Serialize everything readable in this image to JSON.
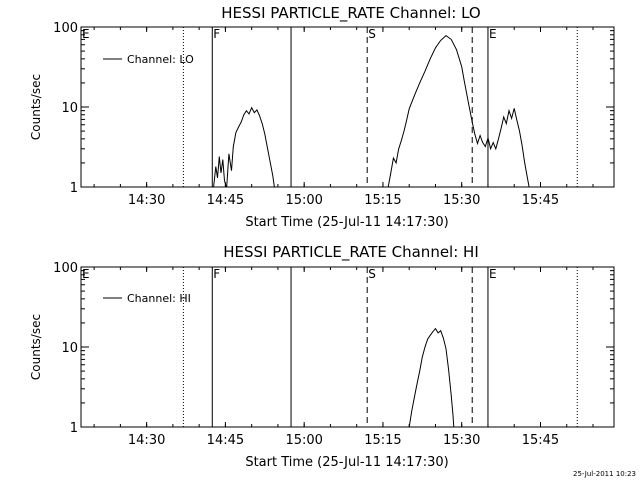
{
  "chart_data": [
    {
      "type": "line",
      "title": "HESSI PARTICLE_RATE Channel: LO",
      "xlabel": "Start Time (25-Jul-11 14:17:30)",
      "ylabel": "Counts/sec",
      "y_scale": "log",
      "ylim": [
        1,
        100
      ],
      "xlim": [
        "14:17:30",
        "15:59:00"
      ],
      "x_ticks": [
        "14:30",
        "14:45",
        "15:00",
        "15:15",
        "15:30",
        "15:45"
      ],
      "y_ticks": [
        "1",
        "10",
        "100"
      ],
      "legend": {
        "position": "top-left",
        "entries": [
          "Channel: LO"
        ]
      },
      "markers": [
        {
          "label": "E",
          "time": "14:17:30",
          "style": "solid"
        },
        {
          "label": "",
          "time": "14:37:00",
          "style": "dotted"
        },
        {
          "label": "F",
          "time": "14:42:30",
          "style": "solid"
        },
        {
          "label": "",
          "time": "14:57:30",
          "style": "solid"
        },
        {
          "label": "S",
          "time": "15:12:00",
          "style": "dashed"
        },
        {
          "label": "",
          "time": "15:32:00",
          "style": "dashed"
        },
        {
          "label": "E",
          "time": "15:35:00",
          "style": "solid"
        },
        {
          "label": "",
          "time": "15:52:00",
          "style": "dotted"
        }
      ],
      "series": [
        {
          "name": "Channel: LO",
          "segments": [
            [
              [
                "14:42:45",
                1.0
              ],
              [
                "14:43:10",
                1.8
              ],
              [
                "14:43:30",
                1.3
              ],
              [
                "14:43:50",
                2.4
              ],
              [
                "14:44:10",
                1.5
              ],
              [
                "14:44:30",
                2.2
              ],
              [
                "14:44:50",
                1.2
              ],
              [
                "14:45:10",
                1.0
              ]
            ],
            [
              [
                "14:45:15",
                1.0
              ],
              [
                "14:45:40",
                2.6
              ],
              [
                "14:46:10",
                1.6
              ],
              [
                "14:46:30",
                3.2
              ],
              [
                "14:47:00",
                4.8
              ],
              [
                "14:47:30",
                5.6
              ],
              [
                "14:48:00",
                6.5
              ],
              [
                "14:48:30",
                8.0
              ],
              [
                "14:49:00",
                9.0
              ],
              [
                "14:49:30",
                8.2
              ],
              [
                "14:50:00",
                9.8
              ],
              [
                "14:50:30",
                8.5
              ],
              [
                "14:51:00",
                9.2
              ],
              [
                "14:51:30",
                7.8
              ],
              [
                "14:52:00",
                6.2
              ],
              [
                "14:52:30",
                4.6
              ],
              [
                "14:53:00",
                3.1
              ],
              [
                "14:53:30",
                2.1
              ],
              [
                "14:54:00",
                1.4
              ],
              [
                "14:54:20",
                1.0
              ]
            ],
            [
              [
                "15:16:00",
                1.0
              ],
              [
                "15:16:30",
                1.5
              ],
              [
                "15:17:00",
                2.3
              ],
              [
                "15:17:30",
                2.0
              ],
              [
                "15:18:00",
                3.0
              ],
              [
                "15:18:30",
                3.8
              ],
              [
                "15:19:00",
                5.0
              ],
              [
                "15:19:30",
                6.8
              ],
              [
                "15:20:00",
                9.5
              ],
              [
                "15:21:00",
                14
              ],
              [
                "15:22:00",
                20
              ],
              [
                "15:23:00",
                28
              ],
              [
                "15:24:00",
                40
              ],
              [
                "15:25:00",
                55
              ],
              [
                "15:26:00",
                68
              ],
              [
                "15:27:00",
                78
              ],
              [
                "15:28:00",
                70
              ],
              [
                "15:29:00",
                52
              ],
              [
                "15:30:00",
                32
              ],
              [
                "15:30:30",
                21
              ],
              [
                "15:31:00",
                14
              ],
              [
                "15:31:30",
                9.5
              ],
              [
                "15:32:00",
                6.5
              ],
              [
                "15:32:30",
                4.6
              ],
              [
                "15:33:00",
                3.5
              ],
              [
                "15:33:30",
                4.4
              ],
              [
                "15:34:00",
                3.6
              ],
              [
                "15:34:30",
                3.2
              ],
              [
                "15:35:00",
                4.1
              ],
              [
                "15:35:30",
                3.0
              ],
              [
                "15:36:00",
                3.6
              ],
              [
                "15:36:30",
                3.0
              ],
              [
                "15:37:00",
                4.0
              ],
              [
                "15:37:30",
                5.4
              ],
              [
                "15:38:00",
                7.5
              ],
              [
                "15:38:30",
                6.2
              ],
              [
                "15:39:00",
                9.0
              ],
              [
                "15:39:30",
                7.2
              ],
              [
                "15:40:00",
                9.6
              ],
              [
                "15:40:30",
                6.8
              ],
              [
                "15:41:00",
                5.0
              ],
              [
                "15:41:30",
                3.3
              ],
              [
                "15:42:00",
                2.0
              ],
              [
                "15:42:30",
                1.3
              ],
              [
                "15:42:50",
                1.0
              ]
            ]
          ]
        }
      ]
    },
    {
      "type": "line",
      "title": "HESSI PARTICLE_RATE Channel: HI",
      "xlabel": "Start Time (25-Jul-11 14:17:30)",
      "ylabel": "Counts/sec",
      "y_scale": "log",
      "ylim": [
        1,
        100
      ],
      "xlim": [
        "14:17:30",
        "15:59:00"
      ],
      "x_ticks": [
        "14:30",
        "14:45",
        "15:00",
        "15:15",
        "15:30",
        "15:45"
      ],
      "y_ticks": [
        "1",
        "10",
        "100"
      ],
      "legend": {
        "position": "top-left",
        "entries": [
          "Channel: HI"
        ]
      },
      "markers": [
        {
          "label": "E",
          "time": "14:17:30",
          "style": "solid"
        },
        {
          "label": "",
          "time": "14:37:00",
          "style": "dotted"
        },
        {
          "label": "F",
          "time": "14:42:30",
          "style": "solid"
        },
        {
          "label": "",
          "time": "14:57:30",
          "style": "solid"
        },
        {
          "label": "S",
          "time": "15:12:00",
          "style": "dashed"
        },
        {
          "label": "",
          "time": "15:32:00",
          "style": "dashed"
        },
        {
          "label": "E",
          "time": "15:35:00",
          "style": "solid"
        },
        {
          "label": "",
          "time": "15:52:00",
          "style": "dotted"
        }
      ],
      "series": [
        {
          "name": "Channel: HI",
          "segments": [
            [
              [
                "15:20:00",
                1.0
              ],
              [
                "15:20:30",
                1.6
              ],
              [
                "15:21:00",
                2.4
              ],
              [
                "15:21:30",
                3.5
              ],
              [
                "15:22:00",
                5.0
              ],
              [
                "15:22:30",
                7.5
              ],
              [
                "15:23:00",
                10
              ],
              [
                "15:23:30",
                12.5
              ],
              [
                "15:24:00",
                14
              ],
              [
                "15:24:30",
                15.5
              ],
              [
                "15:25:00",
                17
              ],
              [
                "15:25:30",
                15
              ],
              [
                "15:26:00",
                16
              ],
              [
                "15:26:30",
                13
              ],
              [
                "15:27:00",
                9.5
              ],
              [
                "15:27:30",
                5.2
              ],
              [
                "15:28:00",
                2.5
              ],
              [
                "15:28:20",
                1.4
              ],
              [
                "15:28:30",
                1.0
              ]
            ]
          ]
        }
      ]
    }
  ],
  "footer": {
    "timestamp": "25-Jul-2011 10:23"
  }
}
